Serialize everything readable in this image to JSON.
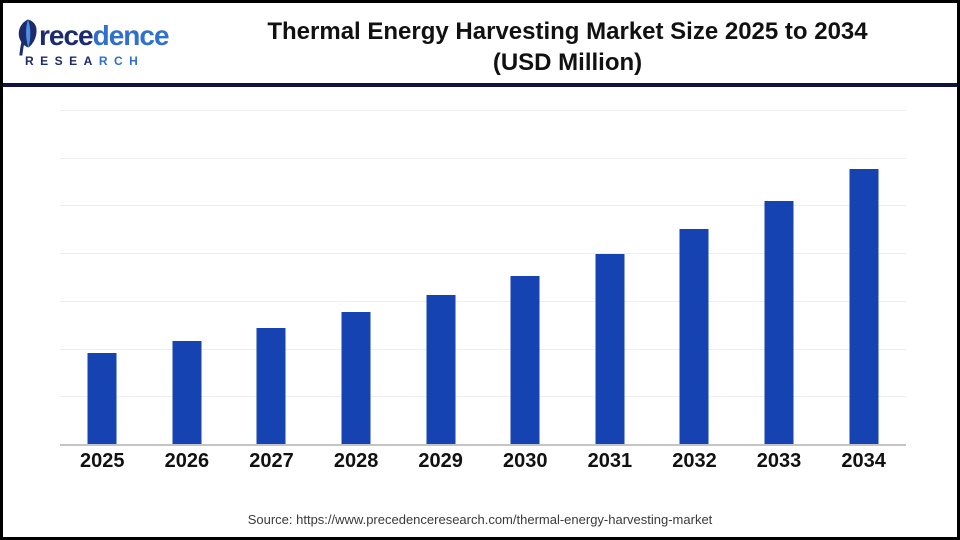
{
  "header": {
    "logo": {
      "name_dark": "rece",
      "name_light": "dence",
      "research_dark": "RESEA",
      "research_light": "RCH"
    },
    "title_line1": "Thermal Energy Harvesting Market Size 2025 to 2034",
    "title_line2": "(USD Million)"
  },
  "chart_data": {
    "type": "bar",
    "title": "Thermal Energy Harvesting Market Size 2025 to 2034 (USD Million)",
    "categories": [
      "2025",
      "2026",
      "2027",
      "2028",
      "2029",
      "2030",
      "2031",
      "2032",
      "2033",
      "2034"
    ],
    "values": [
      468,
      529,
      598,
      677,
      765,
      865,
      978,
      1105,
      1250,
      1413
    ],
    "unit": "USD Million",
    "xlabel": "",
    "ylabel": "",
    "ylim": [
      0,
      1715
    ],
    "y_axis_labels_shown": false,
    "values_are_estimates": true,
    "gridlines": true,
    "gridline_intervals": 7,
    "legend_position": "none",
    "bar_color": "#1543b1"
  },
  "footer": {
    "source_text": "Source: https://www.precedenceresearch.com/thermal-energy-harvesting-market"
  },
  "colors": {
    "bar": "#1543b1",
    "separator_navy": "#12123e",
    "logo_navy": "#1c2a6e",
    "logo_blue": "#2f6fd0",
    "gridline": "#efeeec",
    "axis_line": "#c4c4c4",
    "title_text": "#111111",
    "source_text": "#3a3a3a"
  }
}
